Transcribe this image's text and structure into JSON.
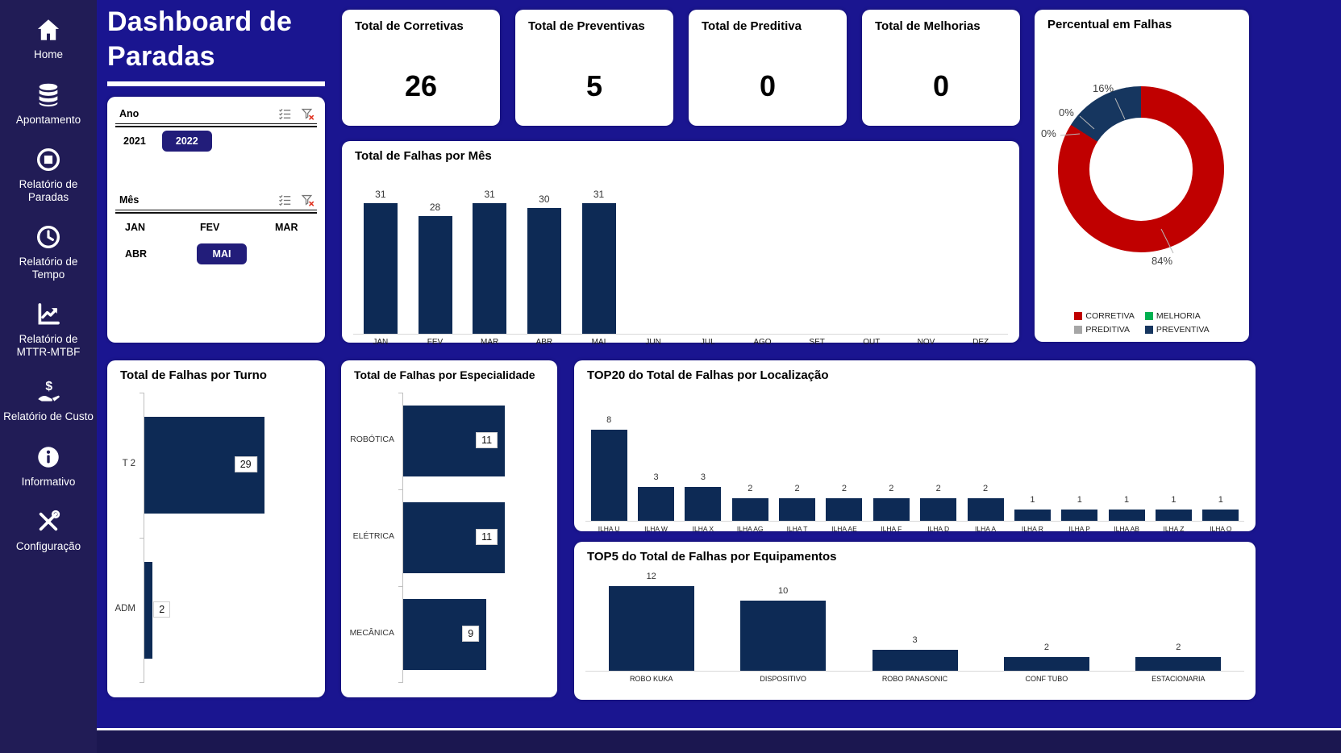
{
  "colors": {
    "background": "#1a1590",
    "sidebar": "#211c56",
    "footer": "#1b1750",
    "bar_navy": "#0d2a55",
    "chip_navy": "#221d7a",
    "corretiva_red": "#c00000",
    "melhoria_green": "#00b050",
    "preditiva_gray": "#a6a6a6",
    "preventiva_navy": "#16365f"
  },
  "header": {
    "title": "Dashboard de Paradas"
  },
  "sidebar": {
    "items": [
      {
        "label": "Home",
        "icon": "home-icon"
      },
      {
        "label": "Apontamento",
        "icon": "database-icon"
      },
      {
        "label": "Relatório de Paradas",
        "icon": "stop-circle-icon"
      },
      {
        "label": "Relatório de Tempo",
        "icon": "clock-icon"
      },
      {
        "label": "Relatório de MTTR-MTBF",
        "icon": "line-chart-icon"
      },
      {
        "label": "Relatório de Custo",
        "icon": "money-hand-icon"
      },
      {
        "label": "Informativo",
        "icon": "info-icon"
      },
      {
        "label": "Configuração",
        "icon": "tools-icon"
      }
    ]
  },
  "filters": {
    "ano": {
      "label": "Ano",
      "icons": [
        "select-all-icon",
        "clear-filter-icon"
      ],
      "options": [
        {
          "label": "2021",
          "selected": false
        },
        {
          "label": "2022",
          "selected": true
        }
      ]
    },
    "mes": {
      "label": "Mês",
      "icons": [
        "select-all-icon",
        "clear-filter-icon"
      ],
      "options": [
        {
          "label": "JAN",
          "selected": false
        },
        {
          "label": "FEV",
          "selected": false
        },
        {
          "label": "MAR",
          "selected": false
        },
        {
          "label": "ABR",
          "selected": false
        },
        {
          "label": "MAI",
          "selected": true
        }
      ]
    }
  },
  "kpis": [
    {
      "title": "Total de Corretivas",
      "value": "26"
    },
    {
      "title": "Total de Preventivas",
      "value": "5"
    },
    {
      "title": "Total de Preditiva",
      "value": "0"
    },
    {
      "title": "Total de Melhorias",
      "value": "0"
    }
  ],
  "chart_data": [
    {
      "id": "falhas_mes",
      "type": "bar",
      "title": "Total de Falhas por Mês",
      "categories": [
        "JAN",
        "FEV",
        "MAR",
        "ABR",
        "MAI",
        "JUN",
        "JUL",
        "AGO",
        "SET",
        "OUT",
        "NOV",
        "DEZ"
      ],
      "values": [
        31,
        28,
        31,
        30,
        31,
        null,
        null,
        null,
        null,
        null,
        null,
        null
      ],
      "ylim": [
        0,
        37
      ],
      "grid": false,
      "value_labels": true
    },
    {
      "id": "percentual_falhas",
      "type": "donut",
      "title": "Percentual em Falhas",
      "slices": [
        {
          "label": "CORRETIVA",
          "pct": 84,
          "color": "#c00000"
        },
        {
          "label": "MELHORIA",
          "pct": 0,
          "color": "#00b050"
        },
        {
          "label": "PREDITIVA",
          "pct": 0,
          "color": "#a6a6a6"
        },
        {
          "label": "PREVENTIVA",
          "pct": 16,
          "color": "#16365f"
        }
      ],
      "legend_position": "bottom"
    },
    {
      "id": "falhas_turno",
      "type": "hbar",
      "title": "Total de Falhas por Turno",
      "categories": [
        "T 2",
        "ADM"
      ],
      "values": [
        29,
        2
      ],
      "xlim": [
        0,
        40
      ],
      "value_labels": true
    },
    {
      "id": "falhas_especialidade",
      "type": "hbar",
      "title": "Total de Falhas por Especialidade",
      "categories": [
        "ROBÓTICA",
        "ELÉTRICA",
        "MECÂNICA"
      ],
      "values": [
        11,
        11,
        9
      ],
      "xlim": [
        0,
        15
      ],
      "value_labels": true
    },
    {
      "id": "top20_localizacao",
      "type": "bar",
      "title": "TOP20 do Total de Falhas por Localização",
      "categories": [
        "ILHA U",
        "ILHA W",
        "ILHA X",
        "ILHA AG",
        "ILHA T",
        "ILHA AE",
        "ILHA F",
        "ILHA D",
        "ILHA A",
        "ILHA R",
        "ILHA P",
        "ILHA AB",
        "ILHA Z",
        "ILHA O"
      ],
      "values": [
        8,
        3,
        3,
        2,
        2,
        2,
        2,
        2,
        2,
        1,
        1,
        1,
        1,
        1
      ],
      "ylim": [
        0,
        11
      ],
      "value_labels": true
    },
    {
      "id": "top5_equipamentos",
      "type": "bar",
      "title": "TOP5 do Total de Falhas por Equipamentos",
      "categories": [
        "ROBO KUKA",
        "DISPOSITIVO",
        "ROBO PANASONIC",
        "CONF TUBO",
        "ESTACIONARIA"
      ],
      "values": [
        12,
        10,
        3,
        2,
        2
      ],
      "ylim": [
        0,
        13.5
      ],
      "value_labels": true
    }
  ]
}
